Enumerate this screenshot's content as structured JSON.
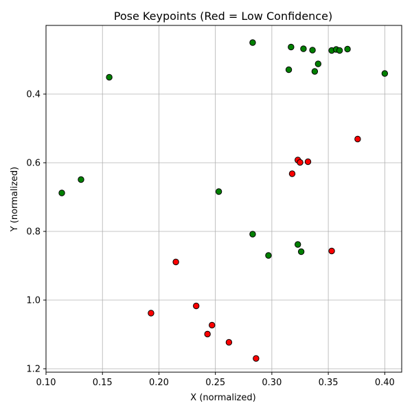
{
  "chart_data": {
    "type": "scatter",
    "title": "Pose Keypoints (Red = Low Confidence)",
    "xlabel": "X (normalized)",
    "ylabel": "Y (normalized)",
    "xlim": [
      0.1,
      0.415
    ],
    "ylim": [
      1.21,
      0.2
    ],
    "y_inverted": true,
    "grid": true,
    "x_ticks": [
      0.1,
      0.15,
      0.2,
      0.25,
      0.3,
      0.35,
      0.4
    ],
    "x_tick_labels": [
      "0.10",
      "0.15",
      "0.20",
      "0.25",
      "0.30",
      "0.35",
      "0.40"
    ],
    "y_ticks": [
      0.4,
      0.6,
      0.8,
      1.0,
      1.2
    ],
    "y_tick_labels": [
      "0.4",
      "0.6",
      "0.8",
      "1.0",
      "1.2"
    ],
    "series": [
      {
        "color": "#008000",
        "x": [
          0.283,
          0.317,
          0.328,
          0.336,
          0.341,
          0.315,
          0.338,
          0.353,
          0.357,
          0.36,
          0.367,
          0.4,
          0.156,
          0.131,
          0.114,
          0.253,
          0.283,
          0.297,
          0.323,
          0.326
        ],
        "y": [
          0.25,
          0.263,
          0.268,
          0.272,
          0.312,
          0.329,
          0.334,
          0.273,
          0.27,
          0.273,
          0.269,
          0.34,
          0.351,
          0.649,
          0.688,
          0.684,
          0.808,
          0.87,
          0.838,
          0.859
        ]
      },
      {
        "color": "#ff0000",
        "x": [
          0.376,
          0.323,
          0.325,
          0.332,
          0.318,
          0.353,
          0.215,
          0.233,
          0.193,
          0.247,
          0.243,
          0.262,
          0.286
        ],
        "y": [
          0.531,
          0.592,
          0.599,
          0.597,
          0.632,
          0.857,
          0.889,
          1.017,
          1.038,
          1.073,
          1.099,
          1.123,
          1.17
        ]
      }
    ]
  }
}
